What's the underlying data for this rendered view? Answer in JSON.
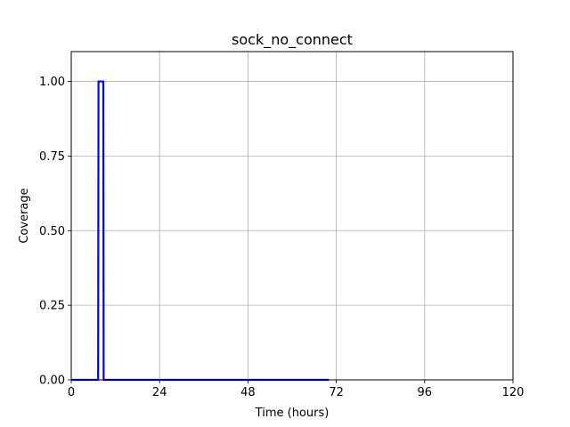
{
  "chart_data": {
    "type": "line",
    "title": "sock_no_connect",
    "xlabel": "Time (hours)",
    "ylabel": "Coverage",
    "xlim": [
      0,
      120
    ],
    "ylim": [
      0,
      1.1
    ],
    "xticks": [
      0,
      24,
      48,
      72,
      96,
      120
    ],
    "yticks": [
      0.0,
      0.25,
      0.5,
      0.75,
      1.0
    ],
    "xtick_labels": [
      "0",
      "24",
      "48",
      "72",
      "96",
      "120"
    ],
    "ytick_labels": [
      "0.00",
      "0.25",
      "0.50",
      "0.75",
      "1.00"
    ],
    "grid": true,
    "series": [
      {
        "color": "#0000ff",
        "x": [
          0,
          7.0,
          7.3,
          7.4,
          8.0,
          8.7,
          8.8,
          9.0,
          10.0,
          24,
          48,
          70
        ],
        "y": [
          0,
          0,
          0,
          1,
          1,
          1,
          0,
          0,
          0,
          0,
          0,
          0
        ]
      }
    ]
  }
}
